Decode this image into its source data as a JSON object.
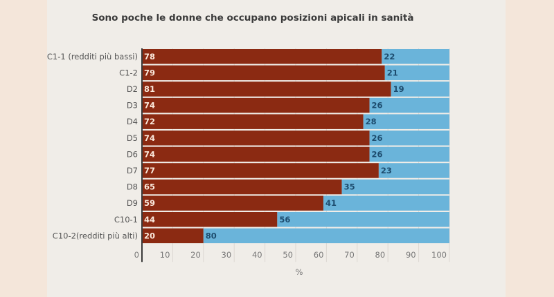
{
  "chart_data": {
    "type": "bar",
    "orientation": "horizontal",
    "stacked": true,
    "title": "Sono poche le donne che occupano posizioni apicali in sanità",
    "xlabel": "%",
    "xlim": [
      0,
      100
    ],
    "xticks": [
      "0",
      "10",
      "20",
      "30",
      "40",
      "50",
      "60",
      "70",
      "80",
      "90",
      "100"
    ],
    "grid": true,
    "categories": [
      "C1-1 (redditi più bassi)",
      "C1-2",
      "D2",
      "D3",
      "D4",
      "D5",
      "D6",
      "D7",
      "D8",
      "D9",
      "C10-1",
      "C10-2(redditi più alti)"
    ],
    "series": [
      {
        "values": [
          78,
          79,
          81,
          74,
          72,
          74,
          74,
          77,
          65,
          59,
          44,
          20
        ],
        "color": "#8b2a12"
      },
      {
        "values": [
          22,
          21,
          19,
          26,
          28,
          26,
          26,
          23,
          35,
          41,
          56,
          80
        ],
        "color": "#6ab4da"
      }
    ]
  }
}
